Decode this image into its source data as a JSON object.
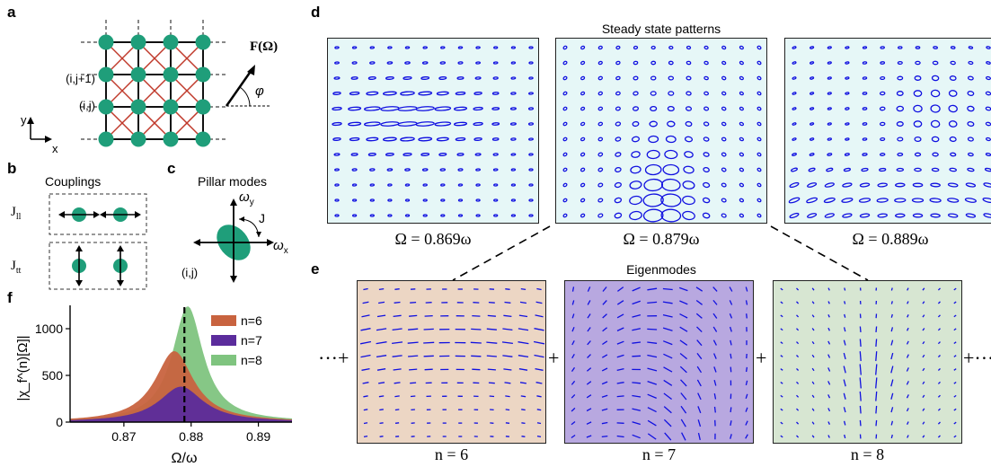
{
  "panels": {
    "a": "a",
    "b": "b",
    "c": "c",
    "d": "d",
    "e": "e",
    "f": "f"
  },
  "panel_a": {
    "row_label_top": "(i,j+1)",
    "row_label_mid": "(i,j)",
    "axis_y": "y",
    "axis_x": "x",
    "force_label": "F(Ω)",
    "angle_label": "φ",
    "colors": {
      "node": "#1f9e7a",
      "cross": "#c0392b",
      "grid": "#111111"
    }
  },
  "panel_b": {
    "title": "Couplings",
    "row1_label": "J",
    "row1_sub": "ll",
    "row2_label": "J",
    "row2_sub": "tt"
  },
  "panel_c": {
    "title": "Pillar modes",
    "omega_y": "ω",
    "omega_y_sub": "y",
    "omega_x": "ω",
    "omega_x_sub": "x",
    "coupling": "J",
    "site": "(i,j)"
  },
  "panel_d": {
    "title": "Steady state patterns",
    "patterns": [
      {
        "label": "Ω = 0.869ω",
        "bg": "#e6f7f7"
      },
      {
        "label": "Ω = 0.879ω",
        "bg": "#e6f7f7"
      },
      {
        "label": "Ω = 0.889ω",
        "bg": "#e6f7f7"
      }
    ],
    "ellipse_color": "#1010e0"
  },
  "panel_e": {
    "title": "Eigenmodes",
    "modes": [
      {
        "label": "n = 6",
        "bg": "#ecd6c4"
      },
      {
        "label": "n = 7",
        "bg": "#b8a8e0"
      },
      {
        "label": "n = 8",
        "bg": "#d7e6d2"
      }
    ],
    "ops": {
      "lead": "···+",
      "plus1": "+",
      "plus2": "+",
      "tail": "+···"
    }
  },
  "chart_data": {
    "type": "area",
    "xlabel": "Ω/ω",
    "ylabel": "|χ_f^(n)[Ω]|",
    "xlim": [
      0.862,
      0.895
    ],
    "ylim": [
      0,
      1250
    ],
    "xticks": [
      "0.87",
      "0.88",
      "0.89"
    ],
    "xtick_values": [
      0.87,
      0.88,
      0.89
    ],
    "yticks": [
      "0",
      "500",
      "1000"
    ],
    "ytick_values": [
      0,
      500,
      1000
    ],
    "vline": 0.879,
    "legend_position": "top-right",
    "series": [
      {
        "name": "n=6",
        "color": "#c8633f",
        "peak": 0.8775,
        "height": 760,
        "width": 0.0035
      },
      {
        "name": "n=7",
        "color": "#5b2c9c",
        "peak": 0.8785,
        "height": 380,
        "width": 0.004
      },
      {
        "name": "n=8",
        "color": "#7fc47f",
        "peak": 0.8795,
        "height": 1240,
        "width": 0.0028
      }
    ]
  }
}
